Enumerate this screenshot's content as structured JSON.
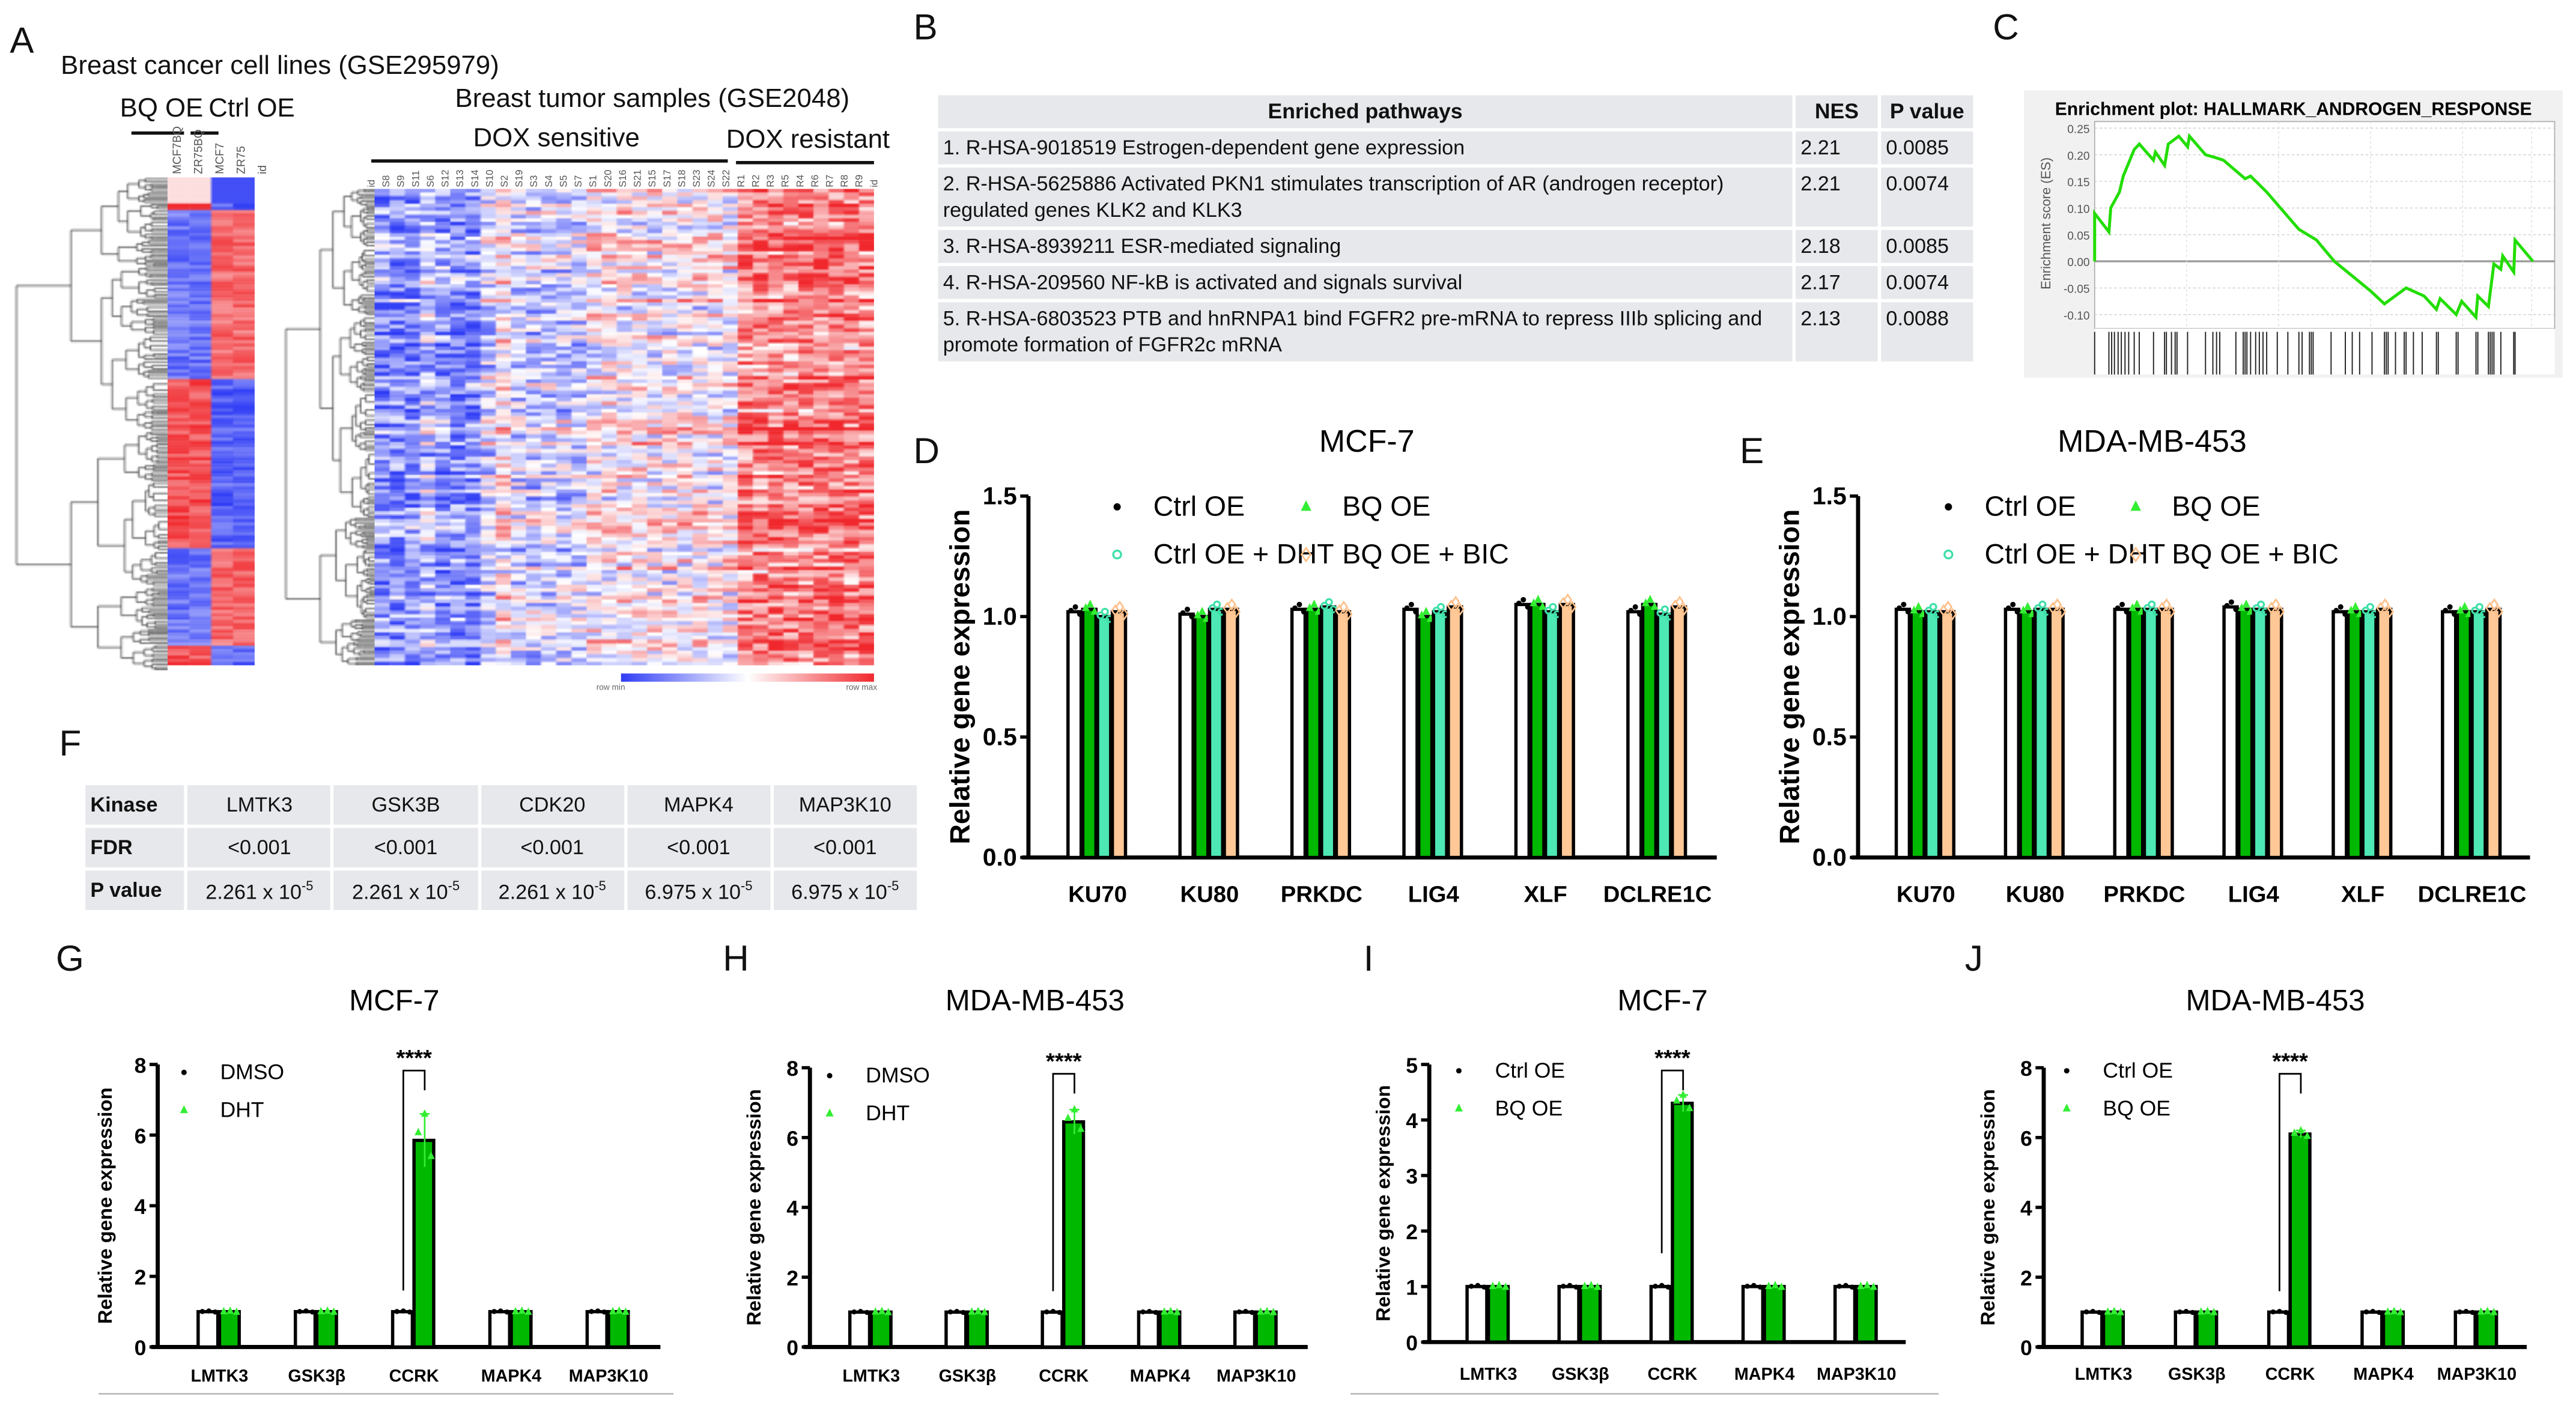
{
  "panels": {
    "A": "A",
    "B": "B",
    "C": "C",
    "D": "D",
    "E": "E",
    "F": "F",
    "G": "G",
    "H": "H",
    "I": "I",
    "J": "J"
  },
  "panelA": {
    "title_cell_lines": "Breast cancer cell lines (GSE295979)",
    "group_bq": "BQ OE",
    "group_ctrl": "Ctrl OE",
    "small_columns": [
      "MCF7BQ",
      "ZR75BQ",
      "MCF7",
      "ZR75",
      "id"
    ],
    "title_tumor": "Breast tumor samples (GSE2048)",
    "group_sensitive": "DOX sensitive",
    "group_resistant": "DOX resistant",
    "big_columns": [
      "id",
      "S8",
      "S9",
      "S11",
      "S6",
      "S12",
      "S13",
      "S14",
      "S10",
      "S2",
      "S19",
      "S3",
      "S4",
      "S5",
      "S7",
      "S1",
      "S20",
      "S16",
      "S21",
      "S15",
      "S17",
      "S18",
      "S23",
      "S24",
      "S22",
      "R1",
      "R2",
      "R3",
      "R5",
      "R4",
      "R6",
      "R7",
      "R8",
      "R9",
      "id"
    ],
    "scale_min": "row min",
    "scale_max": "row max",
    "colors": {
      "low": "#2f3cf5",
      "mid": "#ffffff",
      "high": "#f0282d"
    }
  },
  "panelB": {
    "headers": [
      "Enriched pathways",
      "NES",
      "P value"
    ],
    "rows": [
      {
        "pathway": "1. R-HSA-9018519 Estrogen-dependent gene expression",
        "nes": "2.21",
        "p": "0.0085"
      },
      {
        "pathway": "2. R-HSA-5625886 Activated PKN1 stimulates transcription of AR (androgen receptor) regulated genes KLK2 and KLK3",
        "nes": "2.21",
        "p": "0.0074"
      },
      {
        "pathway": "3. R-HSA-8939211 ESR-mediated signaling",
        "nes": "2.18",
        "p": "0.0085"
      },
      {
        "pathway": "4. R-HSA-209560 NF-kB is activated and signals survival",
        "nes": "2.17",
        "p": "0.0074"
      },
      {
        "pathway": "5. R-HSA-6803523 PTB and hnRNPA1 bind FGFR2 pre-mRNA to repress IIIb splicing and promote formation of FGFR2c mRNA",
        "nes": "2.13",
        "p": "0.0088"
      }
    ]
  },
  "panelF": {
    "row_headers": [
      "Kinase",
      "FDR",
      "P value"
    ],
    "kinases": [
      "LMTK3",
      "GSK3B",
      "CDK20",
      "MAPK4",
      "MAP3K10"
    ],
    "fdr": [
      "<0.001",
      "<0.001",
      "<0.001",
      "<0.001",
      "<0.001"
    ],
    "p_mantissa": [
      "2.261 x 10",
      "2.261 x 10",
      "2.261 x 10",
      "6.975 x 10",
      "6.975 x 10"
    ],
    "p_exponent": [
      "-5",
      "-5",
      "-5",
      "-5",
      "-5"
    ]
  },
  "chart_data": [
    {
      "id": "C",
      "type": "line",
      "title": "Enrichment plot: HALLMARK_ANDROGEN_RESPONSE",
      "ylabel": "Enrichment score (ES)",
      "ylim": [
        -0.12,
        0.25
      ],
      "yticks": [
        "0.25",
        "0.20",
        "0.15",
        "0.10",
        "0.05",
        "0.00",
        "-0.05",
        "-0.10"
      ],
      "ytick_values": [
        0.25,
        0.2,
        0.15,
        0.1,
        0.05,
        0,
        -0.05,
        -0.1
      ],
      "grid": true,
      "line_color": "#22dd00",
      "x": [
        0,
        0,
        0.031,
        0.035,
        0.054,
        0.062,
        0.086,
        0.097,
        0.128,
        0.132,
        0.152,
        0.16,
        0.183,
        0.202,
        0.206,
        0.241,
        0.261,
        0.28,
        0.327,
        0.339,
        0.374,
        0.444,
        0.482,
        0.521,
        0.599,
        0.63,
        0.677,
        0.716,
        0.743,
        0.751,
        0.786,
        0.798,
        0.829,
        0.833,
        0.856,
        0.868,
        0.883,
        0.887,
        0.911,
        0.914,
        0.953
      ],
      "y": [
        0,
        0.09,
        0.055,
        0.1,
        0.13,
        0.16,
        0.21,
        0.22,
        0.19,
        0.205,
        0.18,
        0.22,
        0.235,
        0.215,
        0.235,
        0.2,
        0.195,
        0.19,
        0.155,
        0.16,
        0.13,
        0.06,
        0.04,
        0.0,
        -0.055,
        -0.08,
        -0.05,
        -0.065,
        -0.09,
        -0.07,
        -0.1,
        -0.075,
        -0.105,
        -0.065,
        -0.085,
        -0.005,
        -0.015,
        0.01,
        -0.02,
        0.04,
        0.0
      ],
      "hits": [
        0,
        0.031,
        0.037,
        0.043,
        0.051,
        0.058,
        0.066,
        0.074,
        0.086,
        0.097,
        0.128,
        0.152,
        0.156,
        0.167,
        0.175,
        0.179,
        0.202,
        0.241,
        0.257,
        0.265,
        0.272,
        0.307,
        0.323,
        0.327,
        0.331,
        0.339,
        0.35,
        0.358,
        0.366,
        0.374,
        0.397,
        0.42,
        0.444,
        0.451,
        0.467,
        0.471,
        0.475,
        0.514,
        0.545,
        0.56,
        0.576,
        0.603,
        0.63,
        0.634,
        0.638,
        0.654,
        0.673,
        0.677,
        0.693,
        0.712,
        0.743,
        0.747,
        0.786,
        0.79,
        0.829,
        0.833,
        0.856,
        0.86,
        0.864,
        0.868,
        0.883,
        0.911,
        0.914
      ]
    },
    {
      "id": "D",
      "type": "bar",
      "title": "MCF-7",
      "ylabel": "Relative gene expression",
      "ylim": [
        0,
        1.5
      ],
      "yticks": [
        "0.0",
        "0.5",
        "1.0",
        "1.5"
      ],
      "ytick_values": [
        0,
        0.5,
        1.0,
        1.5
      ],
      "categories": [
        "KU70",
        "KU80",
        "PRKDC",
        "LIG4",
        "XLF",
        "DCLRE1C"
      ],
      "series": [
        {
          "name": "Ctrl OE",
          "color": "#ffffff",
          "marker": "dot",
          "marker_color": "#000000",
          "values": [
            1.02,
            1.01,
            1.03,
            1.03,
            1.05,
            1.02
          ]
        },
        {
          "name": "BQ OE",
          "color": "#00b800",
          "marker": "triangle",
          "marker_color": "#33ee33",
          "values": [
            1.03,
            1.0,
            1.03,
            1.0,
            1.05,
            1.05
          ]
        },
        {
          "name": "Ctrl OE + DHT",
          "color": "#4de8b4",
          "marker": "circle",
          "marker_color": "#3fe0a8",
          "values": [
            1.0,
            1.03,
            1.04,
            1.02,
            1.02,
            1.01
          ]
        },
        {
          "name": "BQ OE  + BIC",
          "color": "#ffc896",
          "marker": "diamond",
          "marker_color": "#ffc08a",
          "values": [
            1.02,
            1.03,
            1.02,
            1.04,
            1.05,
            1.04
          ]
        }
      ]
    },
    {
      "id": "E",
      "type": "bar",
      "title": "MDA-MB-453",
      "ylabel": "Relative gene expression",
      "ylim": [
        0,
        1.5
      ],
      "yticks": [
        "0.0",
        "0.5",
        "1.0",
        "1.5"
      ],
      "ytick_values": [
        0,
        0.5,
        1.0,
        1.5
      ],
      "categories": [
        "KU70",
        "KU80",
        "PRKDC",
        "LIG4",
        "XLF",
        "DCLRE1C"
      ],
      "series": [
        {
          "name": "Ctrl OE",
          "color": "#ffffff",
          "marker": "dot",
          "marker_color": "#000000",
          "values": [
            1.03,
            1.03,
            1.03,
            1.04,
            1.02,
            1.02
          ]
        },
        {
          "name": "BQ OE",
          "color": "#00b800",
          "marker": "triangle",
          "marker_color": "#33ee33",
          "values": [
            1.02,
            1.02,
            1.03,
            1.03,
            1.02,
            1.02
          ]
        },
        {
          "name": "Ctrl OE + DHT",
          "color": "#4de8b4",
          "marker": "circle",
          "marker_color": "#3fe0a8",
          "values": [
            1.02,
            1.03,
            1.03,
            1.03,
            1.02,
            1.02
          ]
        },
        {
          "name": "BQ OE  + BIC",
          "color": "#ffc896",
          "marker": "diamond",
          "marker_color": "#ffc08a",
          "values": [
            1.02,
            1.03,
            1.03,
            1.03,
            1.03,
            1.03
          ]
        }
      ]
    },
    {
      "id": "G",
      "type": "bar",
      "title": "MCF-7",
      "ylabel": "Relative gene expression",
      "ylim": [
        0,
        8
      ],
      "yticks": [
        "0",
        "2",
        "4",
        "6",
        "8"
      ],
      "ytick_values": [
        0,
        2,
        4,
        6,
        8
      ],
      "categories": [
        "LMTK3",
        "GSK3β",
        "CCRK",
        "MAPK4",
        "MAP3K10"
      ],
      "series": [
        {
          "name": "DMSO",
          "color": "#ffffff",
          "marker": "dot",
          "marker_color": "#000000",
          "values": [
            1.0,
            1.0,
            1.0,
            1.0,
            1.0
          ]
        },
        {
          "name": "DHT",
          "color": "#00b800",
          "marker": "triangle",
          "marker_color": "#33ee33",
          "values": [
            1.0,
            1.0,
            5.85,
            1.0,
            1.0
          ],
          "errors": [
            0,
            0,
            0.75,
            0,
            0
          ]
        }
      ],
      "significance": {
        "category": "CCRK",
        "label": "****"
      }
    },
    {
      "id": "H",
      "type": "bar",
      "title": "MDA-MB-453",
      "ylabel": "Relative gene expression",
      "ylim": [
        0,
        8
      ],
      "yticks": [
        "0",
        "2",
        "4",
        "6",
        "8"
      ],
      "ytick_values": [
        0,
        2,
        4,
        6,
        8
      ],
      "categories": [
        "LMTK3",
        "GSK3β",
        "CCRK",
        "MAPK4",
        "MAP3K10"
      ],
      "series": [
        {
          "name": "DMSO",
          "color": "#ffffff",
          "marker": "dot",
          "marker_color": "#000000",
          "values": [
            1.0,
            1.0,
            1.0,
            1.0,
            1.0
          ]
        },
        {
          "name": "DHT",
          "color": "#00b800",
          "marker": "triangle",
          "marker_color": "#33ee33",
          "values": [
            1.0,
            1.0,
            6.45,
            1.0,
            1.0
          ],
          "errors": [
            0,
            0,
            0.35,
            0,
            0
          ]
        }
      ],
      "significance": {
        "category": "CCRK",
        "label": "****"
      }
    },
    {
      "id": "I",
      "type": "bar",
      "title": "MCF-7",
      "ylabel": "Relative gene expression",
      "ylim": [
        0,
        5
      ],
      "yticks": [
        "0",
        "1",
        "2",
        "3",
        "4",
        "5"
      ],
      "ytick_values": [
        0,
        1,
        2,
        3,
        4,
        5
      ],
      "categories": [
        "LMTK3",
        "GSK3β",
        "CCRK",
        "MAPK4",
        "MAP3K10"
      ],
      "series": [
        {
          "name": "Ctrl OE",
          "color": "#ffffff",
          "marker": "dot",
          "marker_color": "#000000",
          "values": [
            1.0,
            1.0,
            1.0,
            1.0,
            1.0
          ]
        },
        {
          "name": "BQ OE",
          "color": "#00b800",
          "marker": "triangle",
          "marker_color": "#33ee33",
          "values": [
            1.0,
            1.0,
            4.3,
            1.0,
            1.0
          ],
          "errors": [
            0,
            0,
            0.15,
            0,
            0
          ]
        }
      ],
      "significance": {
        "category": "CCRK",
        "label": "****"
      }
    },
    {
      "id": "J",
      "type": "bar",
      "title": "MDA-MB-453",
      "ylabel": "Relative gene expression",
      "ylim": [
        0,
        8
      ],
      "yticks": [
        "0",
        "2",
        "4",
        "6",
        "8"
      ],
      "ytick_values": [
        0,
        2,
        4,
        6,
        8
      ],
      "categories": [
        "LMTK3",
        "GSK3β",
        "CCRK",
        "MAPK4",
        "MAP3K10"
      ],
      "series": [
        {
          "name": "Ctrl OE",
          "color": "#ffffff",
          "marker": "dot",
          "marker_color": "#000000",
          "values": [
            1.0,
            1.0,
            1.0,
            1.0,
            1.0
          ]
        },
        {
          "name": "BQ OE",
          "color": "#00b800",
          "marker": "triangle",
          "marker_color": "#33ee33",
          "values": [
            1.0,
            1.0,
            6.1,
            1.0,
            1.0
          ],
          "errors": [
            0,
            0,
            0.1,
            0,
            0
          ]
        }
      ],
      "significance": {
        "category": "CCRK",
        "label": "****"
      }
    }
  ]
}
